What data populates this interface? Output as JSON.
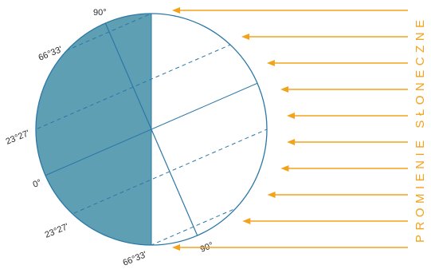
{
  "title": "PROMIENIE SŁONECZNE",
  "labels": {
    "north_pole": "90°",
    "arctic_circle": "66°33'",
    "tropic_north": "23°27'",
    "equator": "0°",
    "tropic_south": "23°27'",
    "antarctic_circle": "66°33'",
    "south_pole": "90°"
  },
  "colors": {
    "night": "#5f9fb4",
    "outline": "#2b77a7",
    "sun_ray": "#f3a21c",
    "text": "#2a2a2a"
  },
  "sun_ray_count": 10,
  "tilt_degrees": 23.45
}
